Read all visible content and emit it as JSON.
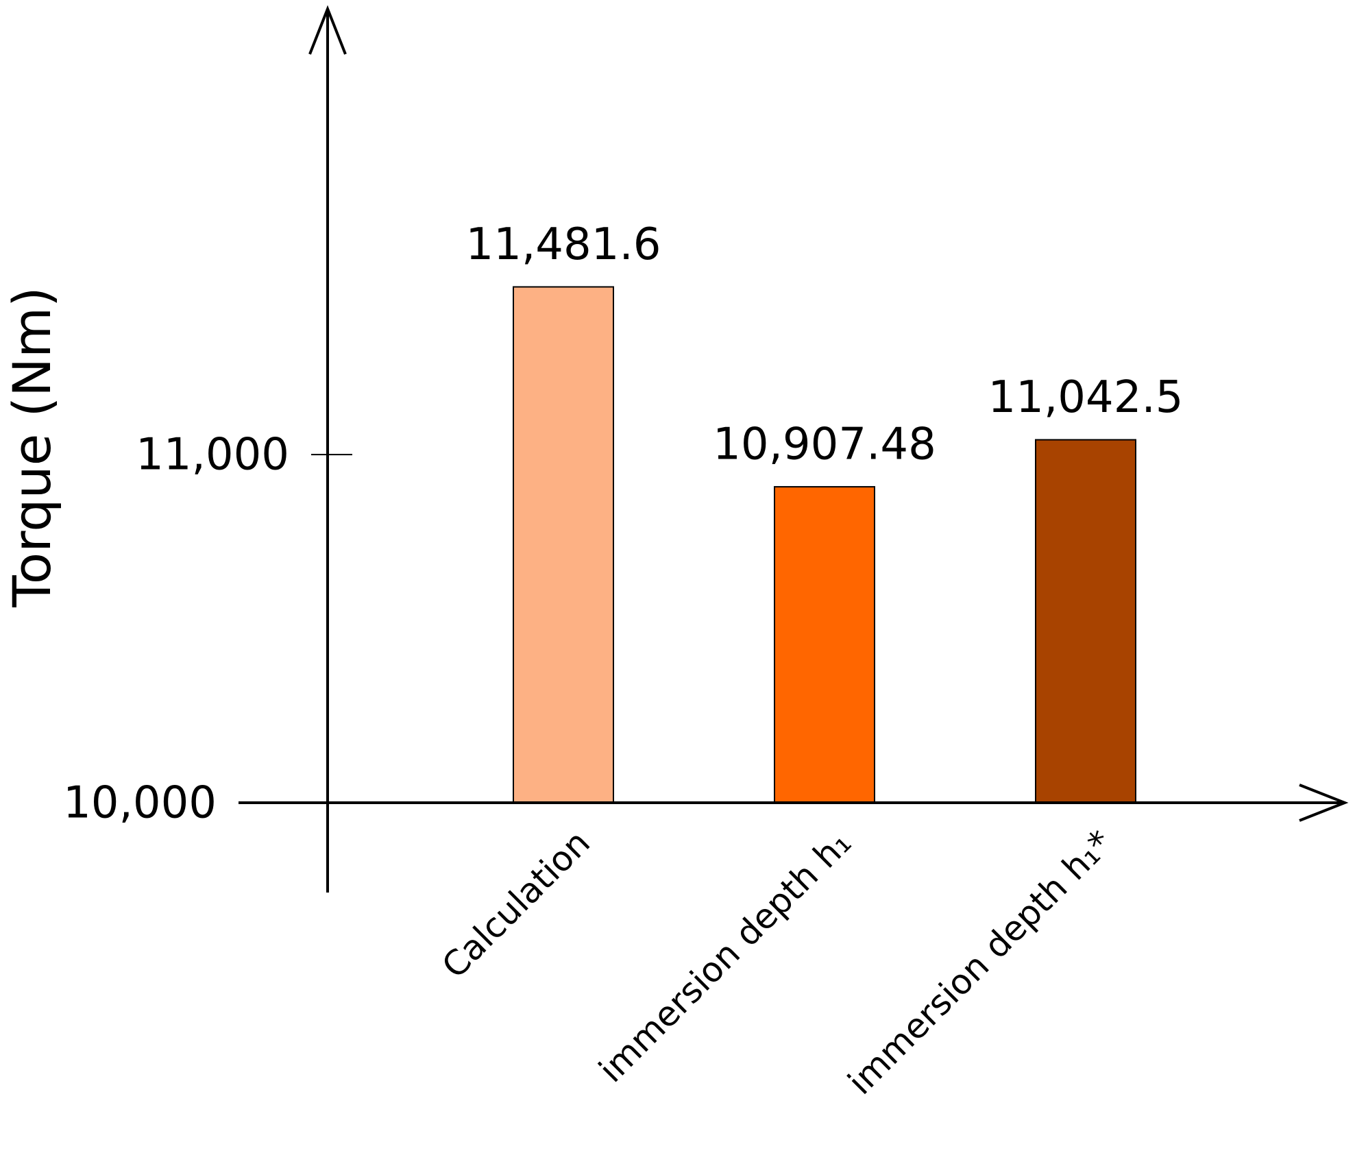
{
  "chart_data": {
    "type": "bar",
    "y_label": "Torque (Nm)",
    "categories": [
      "Calculation",
      "immersion depth h₁",
      "immersion depth h₁*"
    ],
    "values": [
      11481.6,
      10907.48,
      11042.5
    ],
    "value_labels": [
      "11,481.6",
      "10,907.48",
      "11,042.5"
    ],
    "colors": [
      "#FDB184",
      "#FF6600",
      "#A84300"
    ],
    "ylim": [
      10000,
      12280
    ],
    "yticks": [
      {
        "value": 10000,
        "label": "10,000"
      },
      {
        "value": 11000,
        "label": "11,000"
      }
    ]
  }
}
